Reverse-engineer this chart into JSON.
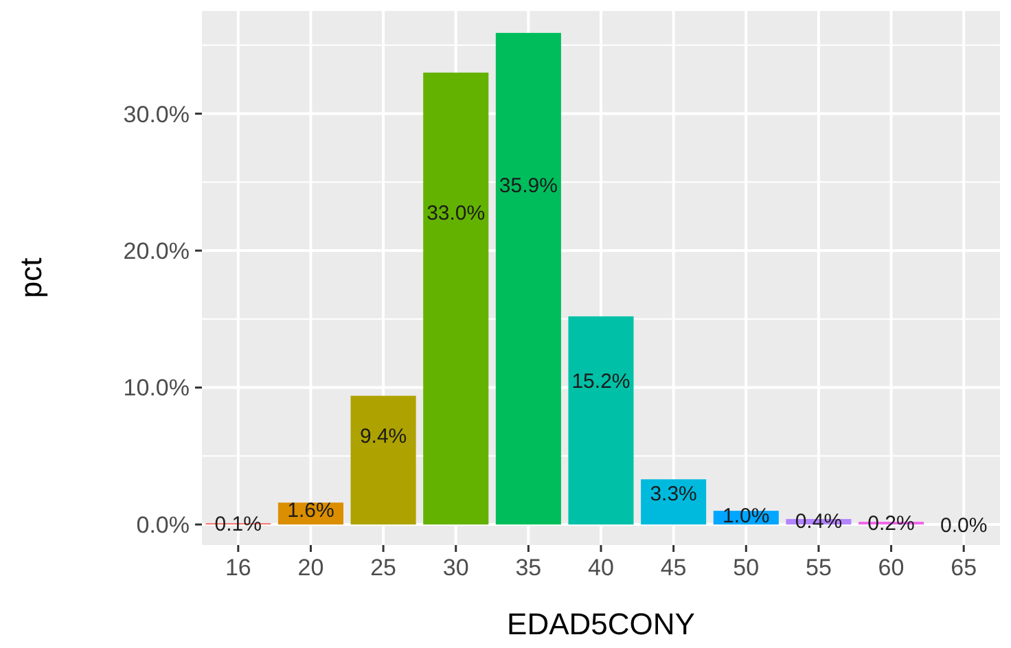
{
  "chart_data": {
    "type": "bar",
    "xlabel": "EDAD5CONY",
    "ylabel": "pct",
    "categories": [
      "16",
      "20",
      "25",
      "30",
      "35",
      "40",
      "45",
      "50",
      "55",
      "60",
      "65"
    ],
    "values": [
      0.1,
      1.6,
      9.4,
      33.0,
      35.9,
      15.2,
      3.3,
      1.0,
      0.4,
      0.2,
      0.0
    ],
    "colors": [
      "#f8766d",
      "#db8e00",
      "#aea200",
      "#64b200",
      "#00bd5c",
      "#00c1a7",
      "#00bade",
      "#00a6ff",
      "#b385ff",
      "#ef67eb",
      "#ff63b6"
    ],
    "value_labels": [
      "0.1%",
      "1.6%",
      "9.4%",
      "33.0%",
      "35.9%",
      "15.2%",
      "3.3%",
      "1.0%",
      "0.4%",
      "0.2%",
      "0.0%"
    ],
    "ylim": [
      -1.5,
      37.5
    ],
    "yticks": [
      {
        "value": 0,
        "label": "0.0%"
      },
      {
        "value": 10,
        "label": "10.0%"
      },
      {
        "value": 20,
        "label": "20.0%"
      },
      {
        "value": 30,
        "label": "30.0%"
      }
    ],
    "grid": true
  }
}
